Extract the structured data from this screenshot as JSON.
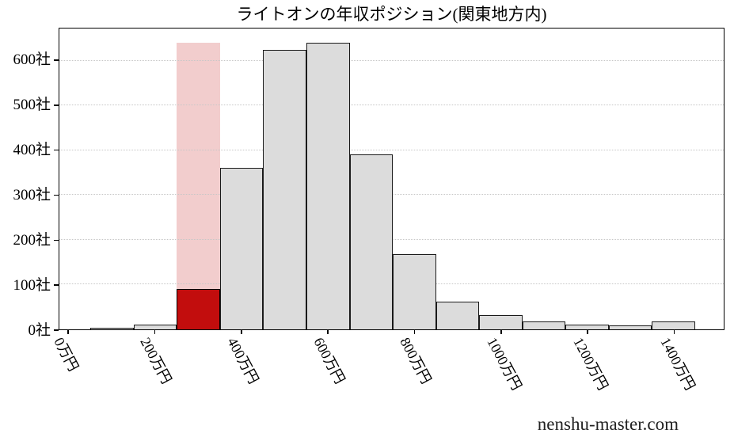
{
  "title": "ライトオンの年収ポジション(関東地方内)",
  "watermark": "nenshu-master.com",
  "chart_data": {
    "type": "bar",
    "subtype": "histogram",
    "title": "ライトオンの年収ポジション(関東地方内)",
    "xlabel": "",
    "ylabel": "",
    "unit_x": "万円",
    "unit_y": "社",
    "xlim": [
      -22,
      1516
    ],
    "ylim": [
      0,
      672
    ],
    "grid": true,
    "legend_position": "none",
    "bin_width": 100,
    "bin_centers": [
      100,
      200,
      300,
      400,
      500,
      600,
      700,
      800,
      900,
      1000,
      1100,
      1200,
      1300,
      1400
    ],
    "values": [
      3,
      11,
      90,
      360,
      625,
      640,
      390,
      168,
      62,
      32,
      17,
      11,
      8,
      18
    ],
    "highlight": {
      "bin_center": 300,
      "value": 90,
      "band_value": 640,
      "meaning": "company-position-bin"
    },
    "x_ticks": [
      {
        "value": 0,
        "label": "0万円"
      },
      {
        "value": 200,
        "label": "200万円"
      },
      {
        "value": 400,
        "label": "400万円"
      },
      {
        "value": 600,
        "label": "600万円"
      },
      {
        "value": 800,
        "label": "800万円"
      },
      {
        "value": 1000,
        "label": "1000万円"
      },
      {
        "value": 1200,
        "label": "1200万円"
      },
      {
        "value": 1400,
        "label": "1400万円"
      }
    ],
    "y_ticks": [
      {
        "value": 0,
        "label": "0社"
      },
      {
        "value": 100,
        "label": "100社"
      },
      {
        "value": 200,
        "label": "200社"
      },
      {
        "value": 300,
        "label": "300社"
      },
      {
        "value": 400,
        "label": "400社"
      },
      {
        "value": 500,
        "label": "500社"
      },
      {
        "value": 600,
        "label": "600社"
      }
    ],
    "colors": {
      "bar_fill": "#dcdcdc",
      "bar_edge": "#1a1a1a",
      "highlight_fill": "#c20d0d",
      "highlight_band": "#f2cdcd",
      "grid": "#c7c7c7",
      "spine": "#000000"
    }
  }
}
